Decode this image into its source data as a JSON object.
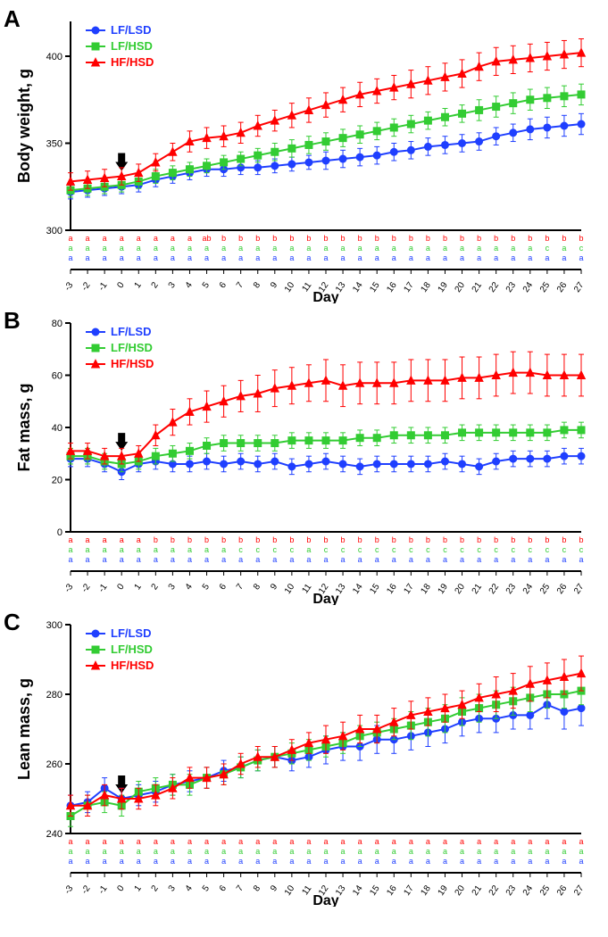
{
  "global": {
    "x_days": [
      -3,
      -2,
      -1,
      0,
      1,
      2,
      3,
      4,
      5,
      6,
      7,
      8,
      9,
      10,
      11,
      12,
      13,
      14,
      15,
      16,
      17,
      18,
      19,
      20,
      21,
      22,
      23,
      24,
      25,
      26,
      27
    ],
    "x_axis_title": "Day",
    "arrow_day": 0,
    "series_colors": {
      "LF_LSD": "#1f3fff",
      "LF_HSD": "#33cc33",
      "HF_HSD": "#ff0000"
    },
    "marker_size": 4,
    "line_width": 2,
    "error_cap_width": 3,
    "background_color": "#ffffff",
    "axis_color": "#000000",
    "legend_items": [
      {
        "key": "LF_LSD",
        "label": "LF/LSD",
        "color": "#1f3fff",
        "marker": "circle"
      },
      {
        "key": "LF_HSD",
        "label": "LF/HSD",
        "color": "#33cc33",
        "marker": "square"
      },
      {
        "key": "HF_HSD",
        "label": "HF/HSD",
        "color": "#ff0000",
        "marker": "triangle"
      }
    ]
  },
  "panelA": {
    "label": "A",
    "y_title": "Body weight, g",
    "ylim": [
      300,
      420
    ],
    "yticks": [
      300,
      350,
      400
    ],
    "series": {
      "LF_LSD": {
        "y": [
          322,
          323,
          324,
          325,
          326,
          329,
          331,
          333,
          335,
          335,
          336,
          336,
          337,
          338,
          339,
          340,
          341,
          342,
          343,
          345,
          346,
          348,
          349,
          350,
          351,
          354,
          356,
          358,
          359,
          360,
          361
        ],
        "err": [
          4,
          4,
          4,
          4,
          4,
          4,
          4,
          4,
          4,
          4,
          4,
          4,
          4,
          4,
          4,
          5,
          5,
          5,
          5,
          5,
          5,
          5,
          5,
          5,
          5,
          5,
          5,
          6,
          6,
          6,
          6
        ]
      },
      "LF_HSD": {
        "y": [
          323,
          324,
          325,
          326,
          328,
          331,
          333,
          335,
          337,
          339,
          341,
          343,
          345,
          347,
          349,
          351,
          353,
          355,
          357,
          359,
          361,
          363,
          365,
          367,
          369,
          371,
          373,
          375,
          376,
          377,
          378
        ],
        "err": [
          4,
          4,
          4,
          4,
          4,
          4,
          4,
          4,
          4,
          4,
          4,
          4,
          5,
          5,
          5,
          5,
          5,
          5,
          5,
          5,
          5,
          5,
          5,
          5,
          6,
          6,
          6,
          6,
          6,
          6,
          6
        ]
      },
      "HF_HSD": {
        "y": [
          328,
          329,
          330,
          331,
          333,
          339,
          345,
          351,
          353,
          354,
          356,
          360,
          363,
          366,
          369,
          372,
          375,
          378,
          380,
          382,
          384,
          386,
          388,
          390,
          394,
          397,
          398,
          399,
          400,
          401,
          402
        ],
        "err": [
          5,
          5,
          5,
          5,
          5,
          5,
          5,
          6,
          6,
          6,
          6,
          6,
          6,
          7,
          7,
          7,
          7,
          7,
          7,
          7,
          8,
          8,
          8,
          8,
          8,
          8,
          8,
          8,
          8,
          8,
          8
        ]
      }
    },
    "sig_letters": {
      "HF_HSD": [
        "a",
        "a",
        "a",
        "a",
        "a",
        "a",
        "a",
        "a",
        "ab",
        "b",
        "b",
        "b",
        "b",
        "b",
        "b",
        "b",
        "b",
        "b",
        "b",
        "b",
        "b",
        "b",
        "b",
        "b",
        "b",
        "b",
        "b",
        "b",
        "b",
        "b",
        "b"
      ],
      "LF_HSD": [
        "a",
        "a",
        "a",
        "a",
        "a",
        "a",
        "a",
        "a",
        "a",
        "a",
        "a",
        "a",
        "a",
        "a",
        "a",
        "a",
        "a",
        "a",
        "a",
        "a",
        "a",
        "a",
        "a",
        "a",
        "a",
        "a",
        "a",
        "a",
        "c",
        "a",
        "c"
      ],
      "LF_LSD": [
        "a",
        "a",
        "a",
        "a",
        "a",
        "a",
        "a",
        "a",
        "a",
        "a",
        "a",
        "a",
        "a",
        "a",
        "a",
        "a",
        "a",
        "a",
        "a",
        "a",
        "a",
        "a",
        "a",
        "a",
        "a",
        "a",
        "a",
        "a",
        "a",
        "a",
        "a"
      ]
    }
  },
  "panelB": {
    "label": "B",
    "y_title": "Fat mass, g",
    "ylim": [
      0,
      80
    ],
    "yticks": [
      0,
      20,
      40,
      60,
      80
    ],
    "series": {
      "LF_LSD": {
        "y": [
          28,
          28,
          26,
          23,
          26,
          27,
          26,
          26,
          27,
          26,
          27,
          26,
          27,
          25,
          26,
          27,
          26,
          25,
          26,
          26,
          26,
          26,
          27,
          26,
          25,
          27,
          28,
          28,
          28,
          29,
          29
        ],
        "err": [
          3,
          3,
          3,
          3,
          3,
          3,
          3,
          3,
          3,
          3,
          3,
          3,
          3,
          3,
          3,
          3,
          3,
          3,
          3,
          3,
          3,
          3,
          3,
          3,
          3,
          3,
          3,
          3,
          3,
          3,
          3
        ]
      },
      "LF_HSD": {
        "y": [
          29,
          29,
          27,
          26,
          27,
          29,
          30,
          31,
          33,
          34,
          34,
          34,
          34,
          35,
          35,
          35,
          35,
          36,
          36,
          37,
          37,
          37,
          37,
          38,
          38,
          38,
          38,
          38,
          38,
          39,
          39
        ],
        "err": [
          3,
          3,
          3,
          3,
          3,
          3,
          3,
          3,
          3,
          3,
          3,
          3,
          3,
          3,
          3,
          3,
          3,
          3,
          3,
          3,
          3,
          3,
          3,
          3,
          3,
          3,
          3,
          3,
          3,
          3,
          3
        ]
      },
      "HF_HSD": {
        "y": [
          31,
          31,
          29,
          29,
          30,
          37,
          42,
          46,
          48,
          50,
          52,
          53,
          55,
          56,
          57,
          58,
          56,
          57,
          57,
          57,
          58,
          58,
          58,
          59,
          59,
          60,
          61,
          61,
          60,
          60,
          60
        ],
        "err": [
          3,
          3,
          3,
          3,
          3,
          4,
          5,
          5,
          6,
          6,
          6,
          7,
          7,
          7,
          7,
          8,
          8,
          8,
          8,
          8,
          8,
          8,
          8,
          8,
          8,
          8,
          8,
          8,
          8,
          8,
          8
        ]
      }
    },
    "sig_letters": {
      "HF_HSD": [
        "a",
        "a",
        "a",
        "a",
        "a",
        "b",
        "b",
        "b",
        "b",
        "b",
        "b",
        "b",
        "b",
        "b",
        "b",
        "b",
        "b",
        "b",
        "b",
        "b",
        "b",
        "b",
        "b",
        "b",
        "b",
        "b",
        "b",
        "b",
        "b",
        "b",
        "b"
      ],
      "LF_HSD": [
        "a",
        "a",
        "a",
        "a",
        "a",
        "a",
        "a",
        "a",
        "a",
        "a",
        "c",
        "c",
        "c",
        "c",
        "a",
        "c",
        "c",
        "c",
        "c",
        "c",
        "c",
        "c",
        "c",
        "c",
        "c",
        "c",
        "c",
        "c",
        "c",
        "c",
        "c"
      ],
      "LF_LSD": [
        "a",
        "a",
        "a",
        "a",
        "a",
        "a",
        "a",
        "a",
        "a",
        "a",
        "a",
        "a",
        "a",
        "a",
        "a",
        "a",
        "a",
        "a",
        "a",
        "a",
        "a",
        "a",
        "a",
        "a",
        "a",
        "a",
        "a",
        "a",
        "a",
        "a",
        "a"
      ]
    }
  },
  "panelC": {
    "label": "C",
    "y_title": "Lean mass, g",
    "ylim": [
      240,
      300
    ],
    "yticks": [
      240,
      260,
      280,
      300
    ],
    "series": {
      "LF_LSD": {
        "y": [
          248,
          249,
          253,
          250,
          251,
          252,
          254,
          255,
          256,
          258,
          259,
          261,
          262,
          261,
          262,
          264,
          265,
          265,
          267,
          267,
          268,
          269,
          270,
          272,
          273,
          273,
          274,
          274,
          277,
          275,
          276
        ],
        "err": [
          3,
          3,
          3,
          3,
          3,
          3,
          3,
          3,
          3,
          3,
          3,
          3,
          3,
          3,
          3,
          4,
          4,
          4,
          4,
          4,
          4,
          4,
          4,
          4,
          4,
          4,
          4,
          4,
          4,
          5,
          5
        ]
      },
      "LF_HSD": {
        "y": [
          245,
          248,
          249,
          248,
          252,
          253,
          254,
          254,
          256,
          257,
          259,
          261,
          262,
          263,
          264,
          265,
          266,
          268,
          269,
          270,
          271,
          272,
          273,
          275,
          276,
          277,
          278,
          279,
          280,
          280,
          281
        ],
        "err": [
          3,
          3,
          3,
          3,
          3,
          3,
          3,
          3,
          3,
          3,
          3,
          3,
          3,
          3,
          3,
          3,
          3,
          3,
          3,
          3,
          4,
          4,
          4,
          4,
          4,
          4,
          4,
          4,
          4,
          4,
          4
        ]
      },
      "HF_HSD": {
        "y": [
          248,
          248,
          251,
          250,
          250,
          251,
          253,
          256,
          256,
          257,
          260,
          262,
          262,
          264,
          266,
          267,
          268,
          270,
          270,
          272,
          274,
          275,
          276,
          277,
          279,
          280,
          281,
          283,
          284,
          285,
          286
        ],
        "err": [
          3,
          3,
          3,
          3,
          3,
          3,
          3,
          3,
          3,
          3,
          3,
          3,
          3,
          3,
          3,
          4,
          4,
          4,
          4,
          4,
          4,
          4,
          4,
          4,
          4,
          5,
          5,
          5,
          5,
          5,
          5
        ]
      }
    },
    "sig_letters": {
      "HF_HSD": [
        "a",
        "a",
        "a",
        "a",
        "a",
        "a",
        "a",
        "a",
        "a",
        "a",
        "a",
        "a",
        "a",
        "a",
        "a",
        "a",
        "a",
        "a",
        "a",
        "a",
        "a",
        "a",
        "a",
        "a",
        "a",
        "a",
        "a",
        "a",
        "a",
        "a",
        "a"
      ],
      "LF_HSD": [
        "a",
        "a",
        "a",
        "a",
        "a",
        "a",
        "a",
        "a",
        "a",
        "a",
        "a",
        "a",
        "a",
        "a",
        "a",
        "a",
        "a",
        "a",
        "a",
        "a",
        "a",
        "a",
        "a",
        "a",
        "a",
        "a",
        "a",
        "a",
        "a",
        "a",
        "a"
      ],
      "LF_LSD": [
        "a",
        "a",
        "a",
        "a",
        "a",
        "a",
        "a",
        "a",
        "a",
        "a",
        "a",
        "a",
        "a",
        "a",
        "a",
        "a",
        "a",
        "a",
        "a",
        "a",
        "a",
        "a",
        "a",
        "a",
        "a",
        "a",
        "a",
        "a",
        "a",
        "a",
        "a"
      ]
    }
  }
}
